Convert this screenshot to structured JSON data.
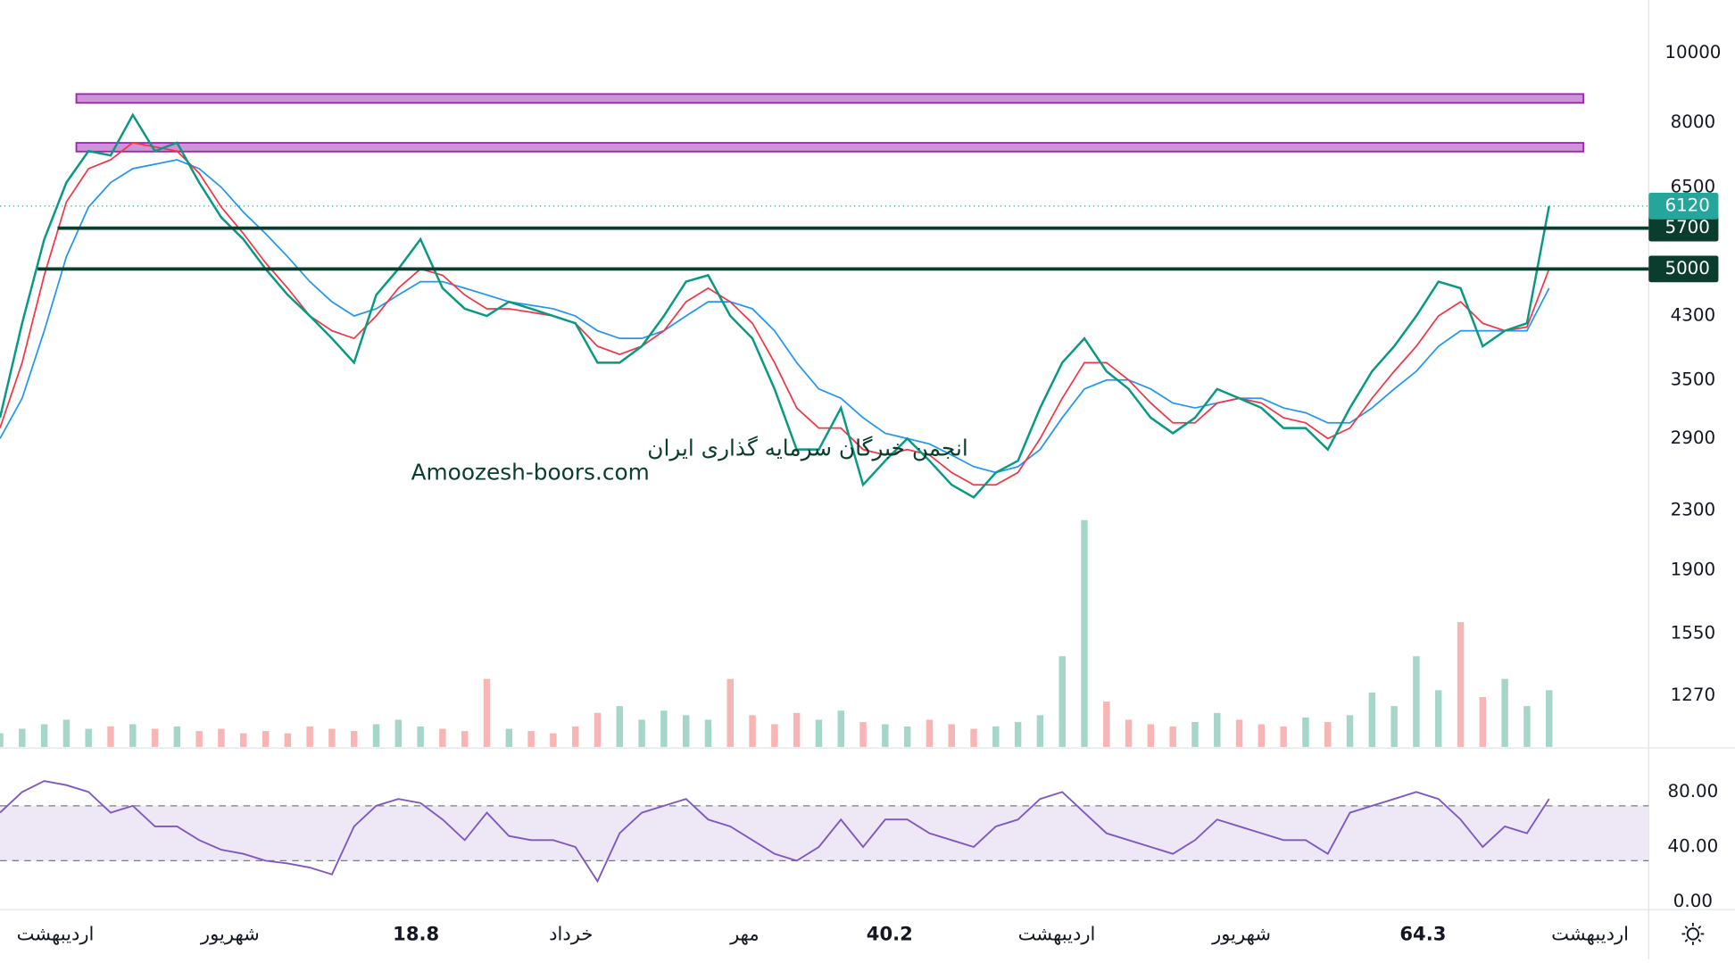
{
  "chart_data": {
    "type": "line",
    "watermark": [
      "انجمن خبرگان سرمایه گذاری ایران",
      "Amoozesh-boors.com"
    ],
    "x": [
      0,
      1,
      2,
      3,
      4,
      5,
      6,
      7,
      8,
      9,
      10,
      11,
      12,
      13,
      14,
      15,
      16,
      17,
      18,
      19,
      20,
      21,
      22,
      23,
      24,
      25,
      26,
      27,
      28,
      29,
      30,
      31,
      32,
      33,
      34,
      35,
      36,
      37,
      38,
      39,
      40,
      41,
      42,
      43,
      44,
      45,
      46,
      47,
      48,
      49,
      50,
      51,
      52,
      53,
      54,
      55,
      56,
      57,
      58,
      59,
      60,
      61,
      62,
      63,
      64,
      65,
      66,
      67,
      68,
      69,
      70
    ],
    "xlim": [
      0,
      74.5
    ],
    "xticks": [
      {
        "value": 2.5,
        "label": "اردیبهشت"
      },
      {
        "value": 10.4,
        "label": "شهریور"
      },
      18.8,
      {
        "value": 25.8,
        "label": "خرداد"
      },
      {
        "value": 33.65,
        "label": "مهر"
      },
      40.2,
      {
        "value": 47.75,
        "label": "اردیبهشت"
      },
      {
        "value": 56.1,
        "label": "شهریور"
      },
      64.3,
      {
        "value": 71.85,
        "label": "اردیبهشت"
      }
    ],
    "ylim": [
      1077,
      11860
    ],
    "log_scale": true,
    "yticks": [
      10000,
      8000,
      6500,
      4300,
      3500,
      2900,
      2300,
      1900,
      1550,
      1270
    ],
    "series": [
      {
        "color": "#089981",
        "values": [
          3100,
          4200,
          5500,
          6600,
          7300,
          7200,
          8200,
          7300,
          7500,
          6600,
          5900,
          5500,
          5000,
          4600,
          4300,
          4000,
          3700,
          4600,
          5000,
          5500,
          4700,
          4400,
          4300,
          4500,
          4400,
          4300,
          4200,
          3700,
          3700,
          3900,
          4300,
          4800,
          4900,
          4300,
          4000,
          3400,
          2800,
          2800,
          3200,
          2500,
          2700,
          2900,
          2700,
          2500,
          2400,
          2600,
          2700,
          3200,
          3700,
          4000,
          3600,
          3400,
          3100,
          2950,
          3100,
          3400,
          3300,
          3200,
          3000,
          3000,
          2800,
          3200,
          3600,
          3900,
          4300,
          4800,
          4700,
          3900,
          4100,
          4200,
          6120
        ]
      },
      {
        "color": "#f23645",
        "values": [
          3000,
          3700,
          4900,
          6200,
          6900,
          7100,
          7500,
          7400,
          7300,
          6800,
          6100,
          5600,
          5100,
          4700,
          4300,
          4100,
          4000,
          4300,
          4700,
          5000,
          4900,
          4600,
          4400,
          4400,
          4350,
          4300,
          4200,
          3900,
          3800,
          3900,
          4100,
          4500,
          4700,
          4500,
          4200,
          3700,
          3200,
          3000,
          3000,
          2800,
          2750,
          2800,
          2750,
          2600,
          2500,
          2500,
          2600,
          2900,
          3300,
          3700,
          3700,
          3500,
          3250,
          3050,
          3050,
          3250,
          3300,
          3250,
          3100,
          3050,
          2900,
          3000,
          3300,
          3600,
          3900,
          4300,
          4500,
          4200,
          4100,
          4150,
          5000
        ]
      },
      {
        "color": "#2196f3",
        "values": [
          2900,
          3300,
          4100,
          5200,
          6100,
          6600,
          6900,
          7000,
          7100,
          6900,
          6500,
          6000,
          5600,
          5200,
          4800,
          4500,
          4300,
          4400,
          4600,
          4800,
          4800,
          4700,
          4600,
          4500,
          4450,
          4400,
          4300,
          4100,
          4000,
          4000,
          4100,
          4300,
          4500,
          4500,
          4400,
          4100,
          3700,
          3400,
          3300,
          3100,
          2950,
          2900,
          2850,
          2750,
          2650,
          2600,
          2650,
          2800,
          3100,
          3400,
          3500,
          3500,
          3400,
          3250,
          3200,
          3250,
          3300,
          3300,
          3200,
          3150,
          3050,
          3050,
          3200,
          3400,
          3600,
          3900,
          4100,
          4100,
          4100,
          4100,
          4700
        ]
      }
    ],
    "zones": [
      {
        "range": [
          8524,
          8770
        ],
        "color": "#ce93d8"
      },
      {
        "range": [
          7290,
          7497
        ],
        "color": "#ce93d8"
      }
    ],
    "levels": [
      5700,
      5000
    ],
    "level_color": "#0b3d2e",
    "last_price": 6120,
    "last_price_color": "#26a69a",
    "volume": {
      "up_color": "#a5d6c9",
      "down_color": "#f7b5b5",
      "values": [
        6,
        8,
        10,
        12,
        8,
        9,
        10,
        8,
        9,
        7,
        8,
        6,
        7,
        6,
        9,
        8,
        7,
        10,
        12,
        9,
        8,
        7,
        30,
        8,
        7,
        6,
        9,
        15,
        18,
        12,
        16,
        14,
        12,
        30,
        14,
        10,
        15,
        12,
        16,
        11,
        10,
        9,
        12,
        10,
        8,
        9,
        11,
        14,
        40,
        100,
        20,
        12,
        10,
        9,
        11,
        15,
        12,
        10,
        9,
        13,
        11,
        14,
        24,
        18,
        40,
        25,
        55,
        22,
        30,
        18,
        25
      ]
    },
    "rsi": {
      "color": "#7e57c2",
      "band_color": "#ede7f6",
      "bands": [
        30,
        70
      ],
      "ylim": [
        -5.6,
        108.8
      ],
      "yticks": [
        {
          "value": 80,
          "label": "80.00"
        },
        {
          "value": 40,
          "label": "40.00"
        },
        {
          "value": 0,
          "label": "0.00"
        }
      ],
      "values": [
        65,
        80,
        88,
        85,
        80,
        65,
        70,
        55,
        55,
        45,
        38,
        35,
        30,
        28,
        25,
        20,
        55,
        70,
        75,
        72,
        60,
        45,
        65,
        48,
        45,
        45,
        40,
        15,
        50,
        65,
        70,
        75,
        60,
        55,
        45,
        35,
        30,
        40,
        60,
        40,
        60,
        60,
        50,
        45,
        40,
        55,
        60,
        75,
        80,
        65,
        50,
        45,
        40,
        35,
        45,
        60,
        55,
        50,
        45,
        45,
        35,
        65,
        70,
        75,
        80,
        75,
        60,
        40,
        55,
        50,
        75
      ]
    }
  }
}
